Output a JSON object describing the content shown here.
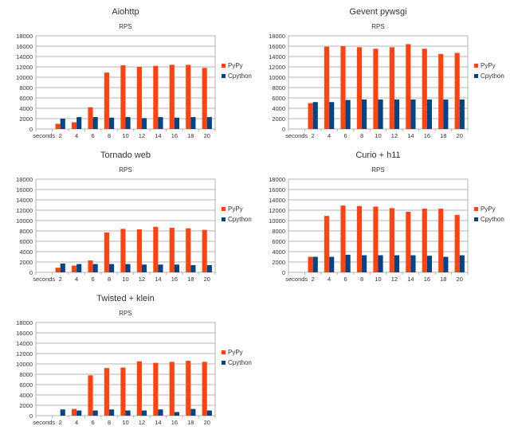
{
  "colors": {
    "pypy": "#ff420e",
    "cpython": "#004586",
    "grid": "#b3b3b3",
    "text": "#333333"
  },
  "chart_data": [
    {
      "type": "bar",
      "title": "Aiohttp",
      "subtitle": "RPS",
      "first_category": "seconds",
      "categories": [
        "2",
        "4",
        "6",
        "8",
        "10",
        "12",
        "14",
        "16",
        "18",
        "20"
      ],
      "ylim": [
        0,
        18000
      ],
      "yticks": [
        "0",
        "2000",
        "4000",
        "6000",
        "8000",
        "10000",
        "12000",
        "14000",
        "16000",
        "18000"
      ],
      "legend_position": "right",
      "series": [
        {
          "name": "PyPy",
          "color": "#ff420e",
          "values": [
            1000,
            1300,
            4200,
            10900,
            12300,
            12000,
            12200,
            12400,
            12400,
            11800
          ]
        },
        {
          "name": "Cpython",
          "color": "#004586",
          "values": [
            2000,
            2300,
            2300,
            2200,
            2300,
            2100,
            2300,
            2200,
            2300,
            2300
          ]
        }
      ]
    },
    {
      "type": "bar",
      "title": "Gevent pywsgi",
      "subtitle": "RPS",
      "first_category": "seconds",
      "categories": [
        "2",
        "4",
        "6",
        "8",
        "10",
        "12",
        "14",
        "16",
        "18",
        "20"
      ],
      "ylim": [
        0,
        18000
      ],
      "yticks": [
        "0",
        "2000",
        "4000",
        "6000",
        "8000",
        "10000",
        "12000",
        "14000",
        "16000",
        "18000"
      ],
      "legend_position": "right",
      "series": [
        {
          "name": "PyPy",
          "color": "#ff420e",
          "values": [
            5000,
            15900,
            16000,
            15800,
            15500,
            15800,
            16400,
            15500,
            14500,
            14700
          ]
        },
        {
          "name": "Cpython",
          "color": "#004586",
          "values": [
            5200,
            5200,
            5600,
            5700,
            5700,
            5700,
            5700,
            5700,
            5700,
            5700
          ]
        }
      ]
    },
    {
      "type": "bar",
      "title": "Tornado web",
      "subtitle": "RPS",
      "first_category": "seconds",
      "categories": [
        "2",
        "4",
        "6",
        "8",
        "10",
        "12",
        "14",
        "16",
        "18",
        "20"
      ],
      "ylim": [
        0,
        18000
      ],
      "yticks": [
        "0",
        "2000",
        "4000",
        "6000",
        "8000",
        "10000",
        "12000",
        "14000",
        "16000",
        "18000"
      ],
      "legend_position": "right",
      "series": [
        {
          "name": "PyPy",
          "color": "#ff420e",
          "values": [
            900,
            1300,
            2300,
            7700,
            8400,
            8300,
            8800,
            8600,
            8500,
            8200
          ]
        },
        {
          "name": "Cpython",
          "color": "#004586",
          "values": [
            1700,
            1600,
            1600,
            1600,
            1600,
            1500,
            1500,
            1500,
            1400,
            1400
          ]
        }
      ]
    },
    {
      "type": "bar",
      "title": "Curio + h11",
      "subtitle": "RPS",
      "first_category": "seconds",
      "categories": [
        "2",
        "4",
        "6",
        "8",
        "10",
        "12",
        "14",
        "16",
        "18",
        "20"
      ],
      "ylim": [
        0,
        18000
      ],
      "yticks": [
        "0",
        "2000",
        "4000",
        "6000",
        "8000",
        "10000",
        "12000",
        "14000",
        "16000",
        "18000"
      ],
      "legend_position": "right",
      "series": [
        {
          "name": "PyPy",
          "color": "#ff420e",
          "values": [
            3000,
            10900,
            12900,
            12800,
            12700,
            12400,
            11700,
            12300,
            12300,
            11100
          ]
        },
        {
          "name": "Cpython",
          "color": "#004586",
          "values": [
            3000,
            3000,
            3400,
            3300,
            3300,
            3300,
            3300,
            3200,
            3000,
            3300
          ]
        }
      ]
    },
    {
      "type": "bar",
      "title": "Twisted + klein",
      "subtitle": "RPS",
      "first_category": "seconds",
      "categories": [
        "2",
        "4",
        "6",
        "8",
        "10",
        "12",
        "14",
        "16",
        "18",
        "20"
      ],
      "ylim": [
        0,
        18000
      ],
      "yticks": [
        "0",
        "2000",
        "4000",
        "6000",
        "8000",
        "10000",
        "12000",
        "14000",
        "16000",
        "18000"
      ],
      "legend_position": "right",
      "series": [
        {
          "name": "PyPy",
          "color": "#ff420e",
          "values": [
            0,
            1300,
            7800,
            9200,
            9300,
            10500,
            10200,
            10400,
            10600,
            10400
          ]
        },
        {
          "name": "Cpython",
          "color": "#004586",
          "values": [
            1200,
            1000,
            1000,
            1200,
            1000,
            1000,
            1200,
            700,
            1300,
            1000
          ]
        }
      ]
    }
  ]
}
